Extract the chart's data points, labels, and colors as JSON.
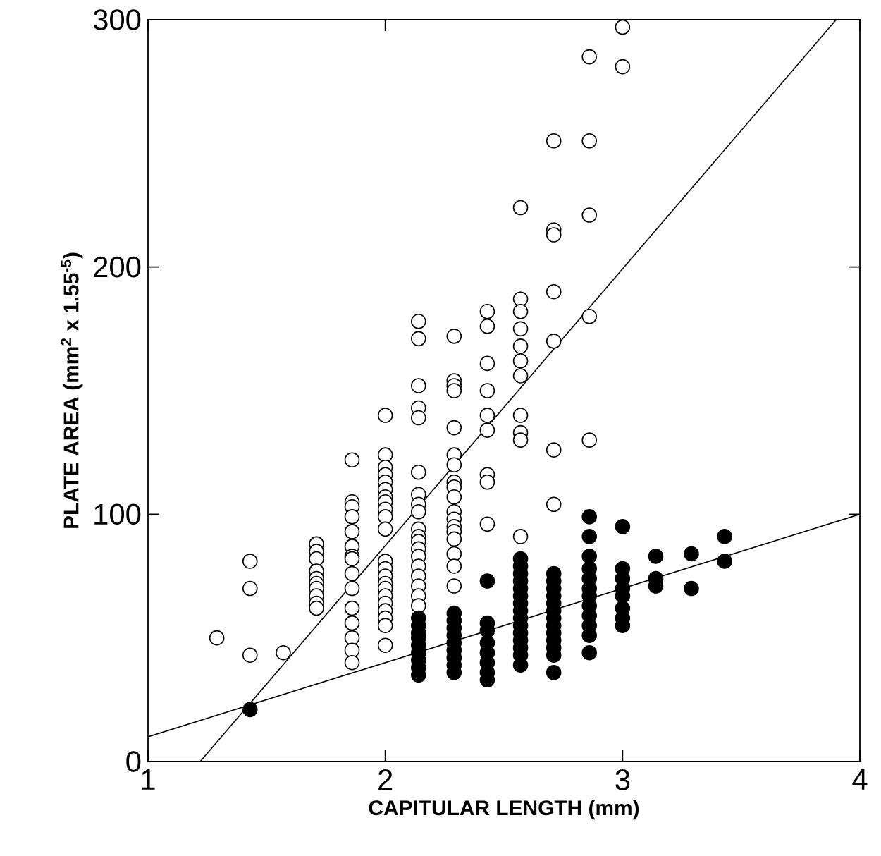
{
  "chart_data": {
    "type": "scatter",
    "xlabel": "CAPITULAR LENGTH (mm)",
    "ylabel": "PLATE AREA (mm$^{2}$ x 1.55$^{-5}$)",
    "xlim": [
      1,
      4
    ],
    "ylim": [
      0,
      300
    ],
    "xticks": [
      1,
      2,
      3,
      4
    ],
    "yticks": [
      0,
      100,
      200,
      300
    ],
    "marker": "circle",
    "series": [
      {
        "color": "#ffffff",
        "x": [
          1.29,
          1.43,
          1.43,
          1.43,
          1.57,
          1.71,
          1.71,
          1.71,
          1.71,
          1.71,
          1.71,
          1.71,
          1.71,
          1.71,
          1.71,
          1.86,
          1.86,
          1.86,
          1.86,
          1.86,
          1.86,
          1.86,
          1.86,
          1.86,
          1.86,
          1.86,
          1.86,
          1.86,
          1.86,
          1.86,
          2.0,
          2.0,
          2.0,
          2.0,
          2.0,
          2.0,
          2.0,
          2.0,
          2.0,
          2.0,
          2.0,
          2.0,
          2.0,
          2.0,
          2.0,
          2.0,
          2.0,
          2.0,
          2.0,
          2.0,
          2.0,
          2.0,
          2.14,
          2.14,
          2.14,
          2.14,
          2.14,
          2.14,
          2.14,
          2.14,
          2.14,
          2.14,
          2.14,
          2.14,
          2.14,
          2.14,
          2.14,
          2.14,
          2.14,
          2.14,
          2.14,
          2.29,
          2.29,
          2.29,
          2.29,
          2.29,
          2.29,
          2.29,
          2.29,
          2.29,
          2.29,
          2.29,
          2.29,
          2.29,
          2.29,
          2.29,
          2.29,
          2.29,
          2.29,
          2.43,
          2.43,
          2.43,
          2.43,
          2.43,
          2.43,
          2.43,
          2.43,
          2.43,
          2.57,
          2.57,
          2.57,
          2.57,
          2.57,
          2.57,
          2.57,
          2.57,
          2.57,
          2.57,
          2.57,
          2.71,
          2.71,
          2.71,
          2.71,
          2.71,
          2.71,
          2.71,
          2.86,
          2.86,
          2.86,
          2.86,
          2.86,
          3.0,
          3.0
        ],
        "values": [
          50,
          81,
          70,
          43,
          44,
          88,
          85,
          82,
          77,
          74,
          72,
          70,
          67,
          64,
          62,
          122,
          105,
          103,
          99,
          93,
          87,
          83,
          82,
          76,
          70,
          62,
          56,
          50,
          45,
          40,
          140,
          124,
          119,
          116,
          113,
          110,
          107,
          105,
          102,
          99,
          94,
          81,
          78,
          75,
          72,
          70,
          67,
          64,
          61,
          58,
          55,
          47,
          178,
          171,
          152,
          143,
          139,
          117,
          108,
          104,
          101,
          94,
          91,
          89,
          86,
          83,
          79,
          75,
          71,
          67,
          63,
          172,
          154,
          152,
          150,
          135,
          124,
          120,
          113,
          111,
          107,
          101,
          98,
          95,
          93,
          90,
          84,
          79,
          71,
          182,
          176,
          161,
          150,
          140,
          134,
          116,
          113,
          96,
          224,
          187,
          182,
          175,
          168,
          162,
          156,
          140,
          133,
          130,
          91,
          251,
          215,
          213,
          190,
          170,
          126,
          104,
          285,
          251,
          221,
          180,
          130,
          297,
          281
        ]
      },
      {
        "color": "#000000",
        "x": [
          1.43,
          2.14,
          2.14,
          2.14,
          2.14,
          2.14,
          2.14,
          2.14,
          2.14,
          2.14,
          2.29,
          2.29,
          2.29,
          2.29,
          2.29,
          2.29,
          2.29,
          2.29,
          2.29,
          2.43,
          2.43,
          2.43,
          2.43,
          2.43,
          2.43,
          2.43,
          2.43,
          2.57,
          2.57,
          2.57,
          2.57,
          2.57,
          2.57,
          2.57,
          2.57,
          2.57,
          2.57,
          2.57,
          2.57,
          2.57,
          2.57,
          2.57,
          2.71,
          2.71,
          2.71,
          2.71,
          2.71,
          2.71,
          2.71,
          2.71,
          2.71,
          2.71,
          2.71,
          2.71,
          2.71,
          2.86,
          2.86,
          2.86,
          2.86,
          2.86,
          2.86,
          2.86,
          2.86,
          2.86,
          2.86,
          2.86,
          2.86,
          3.0,
          3.0,
          3.0,
          3.0,
          3.0,
          3.0,
          3.0,
          3.0,
          3.14,
          3.14,
          3.14,
          3.29,
          3.29,
          3.43,
          3.43
        ],
        "values": [
          21,
          58,
          55,
          52,
          50,
          47,
          44,
          41,
          38,
          35,
          60,
          57,
          54,
          51,
          48,
          45,
          42,
          39,
          36,
          73,
          56,
          53,
          48,
          44,
          40,
          36,
          33,
          82,
          79,
          76,
          73,
          70,
          67,
          64,
          61,
          58,
          55,
          52,
          49,
          46,
          43,
          39,
          76,
          73,
          70,
          67,
          64,
          61,
          58,
          55,
          52,
          49,
          46,
          43,
          36,
          99,
          91,
          83,
          78,
          74,
          70,
          67,
          63,
          59,
          55,
          51,
          44,
          95,
          78,
          74,
          70,
          67,
          62,
          58,
          55,
          83,
          74,
          71,
          84,
          70,
          91,
          81
        ]
      },
      {
        "type": "line",
        "color": "#000000",
        "marker": "none",
        "line_style": "solid",
        "x": [
          1.22,
          3.9
        ],
        "values": [
          0,
          300
        ]
      },
      {
        "type": "line",
        "color": "#000000",
        "marker": "none",
        "line_style": "solid",
        "x": [
          1,
          4
        ],
        "values": [
          10,
          100
        ]
      }
    ]
  }
}
